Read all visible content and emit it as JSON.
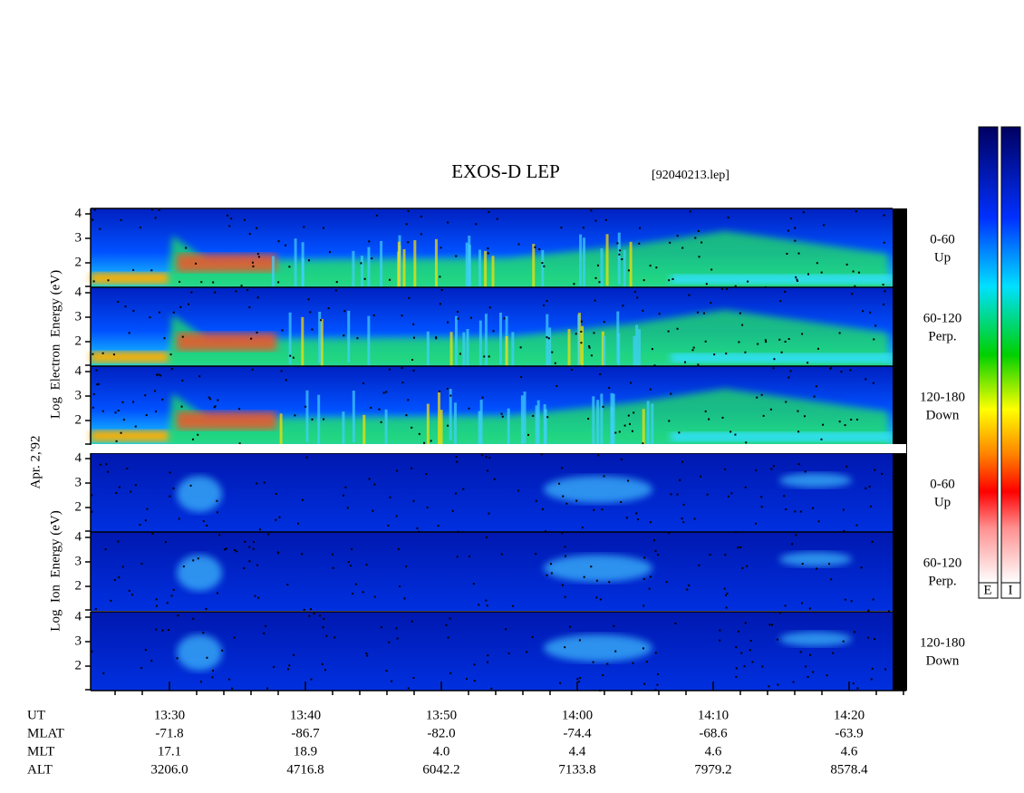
{
  "title": "EXOS-D LEP",
  "file": "[92040213.lep]",
  "electron_panels": [
    {
      "label": "0-60",
      "sub": "Up"
    },
    {
      "label": "60-120",
      "sub": "Perp."
    },
    {
      "label": "120-180",
      "sub": "Down"
    }
  ],
  "ion_panels": [
    {
      "label": "0-60",
      "sub": "Up"
    },
    {
      "label": "60-120",
      "sub": "Perp."
    },
    {
      "label": "120-180",
      "sub": "Down"
    }
  ],
  "y_ticks": [
    "4",
    "3",
    "2"
  ],
  "axis_labels": {
    "electron": "Log  Electron  Energy (eV)",
    "date": "Apr. 2,'92",
    "ion": "Log  Ion  Energy (eV)"
  },
  "colorbar_labels": [
    "E",
    "I"
  ],
  "ephemeris": [
    {
      "name": "UT",
      "values": [
        "13:30",
        "13:40",
        "13:50",
        "14:00",
        "14:10",
        "14:20"
      ]
    },
    {
      "name": "MLAT",
      "values": [
        "-71.8",
        "-86.7",
        "-82.0",
        "-74.4",
        "-68.6",
        "-63.9"
      ]
    },
    {
      "name": "MLT",
      "values": [
        "17.1",
        "18.9",
        "4.0",
        "4.4",
        "4.6",
        "4.6"
      ]
    },
    {
      "name": "ALT",
      "values": [
        "3206.0",
        "4716.8",
        "6042.2",
        "7133.8",
        "7979.2",
        "8578.4"
      ]
    }
  ]
}
